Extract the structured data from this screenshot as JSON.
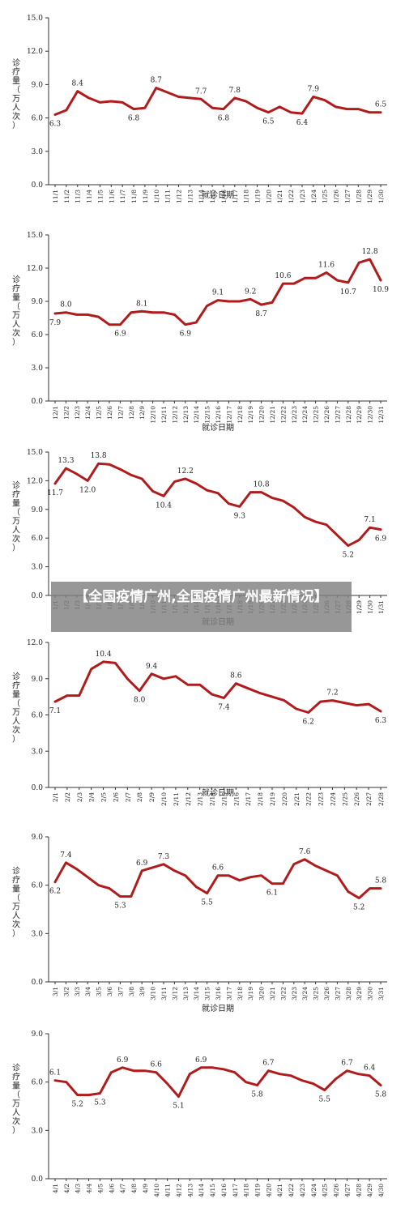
{
  "overlay_title": "【全国疫情广州,全国疫情广州最新情况】",
  "chart_data": [
    {
      "type": "line",
      "ylabel": "诊疗量（万人次）",
      "xlabel": "就诊日期",
      "ylim": [
        0,
        15
      ],
      "yticks": [
        "0.0",
        "3.0",
        "6.0",
        "9.0",
        "12.0",
        "15.0"
      ],
      "color": "#b01c1c",
      "categories": [
        "11/1",
        "11/2",
        "11/3",
        "11/4",
        "11/5",
        "11/6",
        "11/7",
        "11/8",
        "11/9",
        "11/10",
        "11/11",
        "11/12",
        "11/13",
        "11/14",
        "11/15",
        "11/16",
        "11/17",
        "11/18",
        "11/19",
        "11/20",
        "11/21",
        "11/22",
        "11/23",
        "11/24",
        "11/25",
        "11/26",
        "11/27",
        "11/28",
        "11/29",
        "11/30"
      ],
      "values": [
        6.3,
        6.7,
        8.4,
        7.8,
        7.4,
        7.5,
        7.4,
        6.8,
        6.9,
        8.7,
        8.3,
        7.9,
        7.8,
        7.7,
        6.9,
        6.8,
        7.8,
        7.5,
        6.9,
        6.5,
        7.0,
        6.5,
        6.4,
        7.9,
        7.6,
        7.0,
        6.8,
        6.8,
        6.5,
        6.5
      ],
      "labels": [
        {
          "i": 0,
          "text": "6.3"
        },
        {
          "i": 2,
          "text": "8.4"
        },
        {
          "i": 7,
          "text": "6.8"
        },
        {
          "i": 9,
          "text": "8.7"
        },
        {
          "i": 13,
          "text": "7.7"
        },
        {
          "i": 15,
          "text": "6.8"
        },
        {
          "i": 16,
          "text": "7.8"
        },
        {
          "i": 19,
          "text": "6.5"
        },
        {
          "i": 22,
          "text": "6.4"
        },
        {
          "i": 23,
          "text": "7.9"
        },
        {
          "i": 29,
          "text": "6.5"
        }
      ]
    },
    {
      "type": "line",
      "ylabel": "诊疗量（万人次）",
      "xlabel": "就诊日期",
      "ylim": [
        0,
        15
      ],
      "yticks": [
        "0.0",
        "3.0",
        "6.0",
        "9.0",
        "12.0",
        "15.0"
      ],
      "color": "#b01c1c",
      "categories": [
        "12/1",
        "12/2",
        "12/3",
        "12/4",
        "12/5",
        "12/6",
        "12/7",
        "12/8",
        "12/9",
        "12/10",
        "12/11",
        "12/12",
        "12/13",
        "12/14",
        "12/15",
        "12/16",
        "12/17",
        "12/18",
        "12/19",
        "12/20",
        "12/21",
        "12/22",
        "12/23",
        "12/24",
        "12/25",
        "12/26",
        "12/27",
        "12/28",
        "12/29",
        "12/30",
        "12/31"
      ],
      "values": [
        7.9,
        8.0,
        7.8,
        7.8,
        7.6,
        6.9,
        6.9,
        8.0,
        8.1,
        8.0,
        8.0,
        7.8,
        6.9,
        7.1,
        8.6,
        9.1,
        9.0,
        9.0,
        9.2,
        8.7,
        8.9,
        10.6,
        10.6,
        11.1,
        11.1,
        11.6,
        10.9,
        10.7,
        12.5,
        12.8,
        10.9
      ],
      "labels": [
        {
          "i": 0,
          "text": "7.9"
        },
        {
          "i": 1,
          "text": "8.0"
        },
        {
          "i": 6,
          "text": "6.9"
        },
        {
          "i": 8,
          "text": "8.1"
        },
        {
          "i": 12,
          "text": "6.9"
        },
        {
          "i": 15,
          "text": "9.1"
        },
        {
          "i": 18,
          "text": "9.2"
        },
        {
          "i": 19,
          "text": "8.7"
        },
        {
          "i": 21,
          "text": "10.6"
        },
        {
          "i": 25,
          "text": "11.6"
        },
        {
          "i": 27,
          "text": "10.7"
        },
        {
          "i": 29,
          "text": "12.8"
        },
        {
          "i": 30,
          "text": "10.9"
        }
      ]
    },
    {
      "type": "line",
      "ylabel": "诊疗量（万人次）",
      "xlabel": "就诊日期",
      "ylim": [
        0,
        15
      ],
      "yticks": [
        "0.0",
        "3.0",
        "6.0",
        "9.0",
        "12.0",
        "15.0"
      ],
      "color": "#b01c1c",
      "categories": [
        "1/1",
        "1/2",
        "1/3",
        "1/4",
        "1/5",
        "1/6",
        "1/7",
        "1/8",
        "1/9",
        "1/10",
        "1/11",
        "1/12",
        "1/13",
        "1/14",
        "1/15",
        "1/16",
        "1/17",
        "1/18",
        "1/19",
        "1/20",
        "1/21",
        "1/22",
        "1/23",
        "1/24",
        "1/25",
        "1/26",
        "1/27",
        "1/28",
        "1/29",
        "1/30",
        "1/31"
      ],
      "values": [
        11.7,
        13.3,
        12.7,
        12.0,
        13.8,
        13.7,
        13.2,
        12.6,
        12.2,
        10.9,
        10.4,
        11.9,
        12.2,
        11.7,
        11.0,
        10.7,
        9.6,
        9.3,
        10.8,
        10.8,
        10.2,
        9.9,
        9.2,
        8.2,
        7.7,
        7.4,
        6.3,
        5.2,
        5.8,
        7.1,
        6.9
      ],
      "labels": [
        {
          "i": 0,
          "text": "11.7"
        },
        {
          "i": 1,
          "text": "13.3"
        },
        {
          "i": 3,
          "text": "12.0"
        },
        {
          "i": 4,
          "text": "13.8"
        },
        {
          "i": 10,
          "text": "10.4"
        },
        {
          "i": 12,
          "text": "12.2"
        },
        {
          "i": 17,
          "text": "9.3"
        },
        {
          "i": 19,
          "text": "10.8"
        },
        {
          "i": 27,
          "text": "5.2"
        },
        {
          "i": 29,
          "text": "7.1"
        },
        {
          "i": 30,
          "text": "6.9"
        }
      ]
    },
    {
      "type": "line",
      "ylabel": "诊疗量（万人次）",
      "xlabel": "就诊日期",
      "ylim": [
        0,
        12
      ],
      "yticks": [
        "0.0",
        "3.0",
        "6.0",
        "9.0",
        "12.0"
      ],
      "color": "#b01c1c",
      "categories": [
        "2/1",
        "2/2",
        "2/3",
        "2/4",
        "2/5",
        "2/6",
        "2/7",
        "2/8",
        "2/9",
        "2/10",
        "2/11",
        "2/12",
        "2/13",
        "2/14",
        "2/15",
        "2/16",
        "2/17",
        "2/18",
        "2/19",
        "2/20",
        "2/21",
        "2/22",
        "2/23",
        "2/24",
        "2/25",
        "2/26",
        "2/27",
        "2/28"
      ],
      "values": [
        7.1,
        7.6,
        7.6,
        9.8,
        10.4,
        10.3,
        9.0,
        8.0,
        9.4,
        9.0,
        9.2,
        8.5,
        8.5,
        7.7,
        7.4,
        8.6,
        8.2,
        7.8,
        7.5,
        7.2,
        6.5,
        6.2,
        7.1,
        7.2,
        7.0,
        6.8,
        6.9,
        6.3
      ],
      "labels": [
        {
          "i": 0,
          "text": "7.1"
        },
        {
          "i": 4,
          "text": "10.4"
        },
        {
          "i": 7,
          "text": "8.0"
        },
        {
          "i": 8,
          "text": "9.4"
        },
        {
          "i": 14,
          "text": "7.4"
        },
        {
          "i": 15,
          "text": "8.6"
        },
        {
          "i": 21,
          "text": "6.2"
        },
        {
          "i": 23,
          "text": "7.2"
        },
        {
          "i": 27,
          "text": "6.3"
        }
      ]
    },
    {
      "type": "line",
      "ylabel": "诊疗量（万人次）",
      "xlabel": "就诊日期",
      "ylim": [
        0,
        9
      ],
      "yticks": [
        "0.0",
        "3.0",
        "6.0",
        "9.0"
      ],
      "color": "#b01c1c",
      "categories": [
        "3/1",
        "3/2",
        "3/3",
        "3/4",
        "3/5",
        "3/6",
        "3/7",
        "3/8",
        "3/9",
        "3/10",
        "3/11",
        "3/12",
        "3/13",
        "3/14",
        "3/15",
        "3/16",
        "3/17",
        "3/18",
        "3/19",
        "3/20",
        "3/21",
        "3/22",
        "3/23",
        "3/24",
        "3/25",
        "3/26",
        "3/27",
        "3/28",
        "3/29",
        "3/30",
        "3/31"
      ],
      "values": [
        6.2,
        7.4,
        7.0,
        6.5,
        6.0,
        5.8,
        5.3,
        5.3,
        6.9,
        7.1,
        7.3,
        6.9,
        6.6,
        5.9,
        5.5,
        6.6,
        6.6,
        6.3,
        6.5,
        6.6,
        6.1,
        6.1,
        7.3,
        7.6,
        7.2,
        6.9,
        6.6,
        5.6,
        5.2,
        5.8,
        5.8
      ],
      "labels": [
        {
          "i": 0,
          "text": "6.2"
        },
        {
          "i": 1,
          "text": "7.4"
        },
        {
          "i": 6,
          "text": "5.3"
        },
        {
          "i": 8,
          "text": "6.9"
        },
        {
          "i": 10,
          "text": "7.3"
        },
        {
          "i": 14,
          "text": "5.5"
        },
        {
          "i": 15,
          "text": "6.6"
        },
        {
          "i": 20,
          "text": "6.1"
        },
        {
          "i": 23,
          "text": "7.6"
        },
        {
          "i": 28,
          "text": "5.2"
        },
        {
          "i": 30,
          "text": "5.8"
        }
      ]
    },
    {
      "type": "line",
      "ylabel": "诊疗量（万人次）",
      "xlabel": "",
      "ylim": [
        0,
        9
      ],
      "yticks": [
        "0.0",
        "3.0",
        "6.0",
        "9.0"
      ],
      "color": "#b01c1c",
      "categories": [
        "4/1",
        "4/2",
        "4/3",
        "4/4",
        "4/5",
        "4/6",
        "4/7",
        "4/8",
        "4/9",
        "4/10",
        "4/11",
        "4/12",
        "4/13",
        "4/14",
        "4/15",
        "4/16",
        "4/17",
        "4/18",
        "4/19",
        "4/20",
        "4/21",
        "4/22",
        "4/23",
        "4/24",
        "4/25",
        "4/26",
        "4/27",
        "4/28",
        "4/29",
        "4/30"
      ],
      "values": [
        6.1,
        6.0,
        5.2,
        5.2,
        5.3,
        6.6,
        6.9,
        6.7,
        6.7,
        6.6,
        5.9,
        5.1,
        6.5,
        6.9,
        6.9,
        6.8,
        6.6,
        6.0,
        5.8,
        6.7,
        6.5,
        6.4,
        6.1,
        5.9,
        5.5,
        6.2,
        6.7,
        6.5,
        6.4,
        5.8
      ],
      "labels": [
        {
          "i": 0,
          "text": "6.1"
        },
        {
          "i": 2,
          "text": "5.2"
        },
        {
          "i": 4,
          "text": "5.3"
        },
        {
          "i": 6,
          "text": "6.9"
        },
        {
          "i": 9,
          "text": "6.6"
        },
        {
          "i": 11,
          "text": "5.1"
        },
        {
          "i": 13,
          "text": "6.9"
        },
        {
          "i": 18,
          "text": "5.8"
        },
        {
          "i": 19,
          "text": "6.7"
        },
        {
          "i": 24,
          "text": "5.5"
        },
        {
          "i": 26,
          "text": "6.7"
        },
        {
          "i": 28,
          "text": "6.4"
        },
        {
          "i": 29,
          "text": "5.8"
        }
      ]
    }
  ]
}
